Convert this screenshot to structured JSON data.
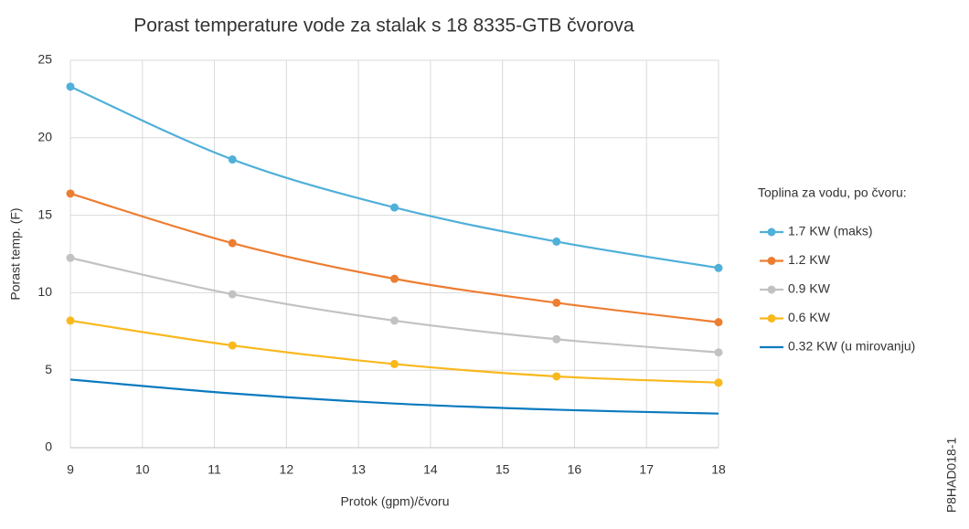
{
  "chart_data": {
    "type": "line",
    "title": "Porast temperature vode za stalak s 18 8335-GTB čvorova",
    "xlabel": "Protok (gpm)/čvoru",
    "ylabel": "Porast temp. (F)",
    "legend_title": "Toplina za vodu, po čvoru:",
    "legend": "right",
    "grid": true,
    "side_note": "P8HAD018-1",
    "x": [
      9,
      11.25,
      13.5,
      15.75,
      18
    ],
    "xlim": [
      9,
      18
    ],
    "xticks": [
      9,
      10,
      11,
      12,
      13,
      14,
      15,
      16,
      17,
      18
    ],
    "ylim": [
      0,
      25
    ],
    "yticks": [
      0,
      5,
      10,
      15,
      20,
      25
    ],
    "series": [
      {
        "name": "1.7 KW (maks)",
        "color": "#4fb0d9",
        "marker": true,
        "values": [
          23.3,
          18.6,
          15.5,
          13.3,
          11.6
        ]
      },
      {
        "name": "1.2 KW",
        "color": "#ed7d31",
        "marker": true,
        "values": [
          16.4,
          13.2,
          10.9,
          9.35,
          8.1
        ]
      },
      {
        "name": "0.9 KW",
        "color": "#c2c2c2",
        "marker": true,
        "values": [
          12.25,
          9.9,
          8.2,
          7.0,
          6.15
        ]
      },
      {
        "name": "0.6 KW",
        "color": "#f9b81c",
        "marker": true,
        "values": [
          8.2,
          6.6,
          5.4,
          4.6,
          4.2
        ]
      },
      {
        "name": "0.32 KW (u mirovanju)",
        "color": "#0a7abf",
        "marker": false,
        "values": [
          4.4,
          3.5,
          2.85,
          2.45,
          2.2
        ]
      }
    ]
  }
}
